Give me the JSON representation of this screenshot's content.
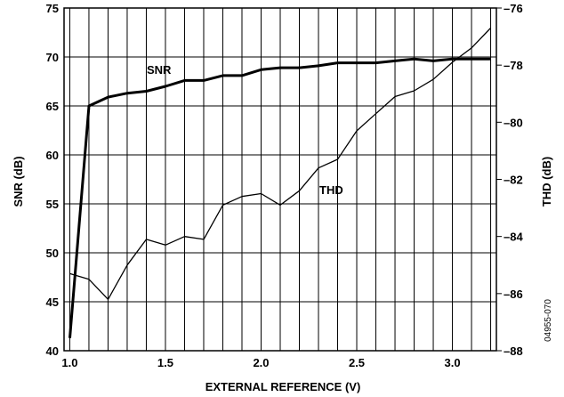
{
  "chart_data": {
    "type": "line",
    "xlabel": "EXTERNAL REFERENCE (V)",
    "ylabel_left": "SNR (dB)",
    "ylabel_right": "THD (dB)",
    "xlim": [
      0.97,
      3.23
    ],
    "ylim_left": [
      40,
      75
    ],
    "ylim_right": [
      -88,
      -76
    ],
    "x_ticks": [
      1.0,
      1.5,
      2.0,
      2.5,
      3.0
    ],
    "x_tick_labels": [
      "1.0",
      "1.5",
      "2.0",
      "2.5",
      "3.0"
    ],
    "y_left_ticks": [
      40,
      45,
      50,
      55,
      60,
      65,
      70,
      75
    ],
    "y_left_tick_labels": [
      "40",
      "45",
      "50",
      "55",
      "60",
      "65",
      "70",
      "75"
    ],
    "y_right_ticks": [
      -88,
      -86,
      -84,
      -82,
      -80,
      -78,
      -76
    ],
    "y_right_tick_labels": [
      "–88",
      "–86",
      "–84",
      "–82",
      "–80",
      "–78",
      "–76"
    ],
    "grid": true,
    "figure_id": "04955-070",
    "series": [
      {
        "name": "SNR",
        "axis": "left",
        "x": [
          1.0,
          1.1,
          1.2,
          1.3,
          1.4,
          1.5,
          1.6,
          1.7,
          1.8,
          1.9,
          2.0,
          2.1,
          2.2,
          2.3,
          2.4,
          2.5,
          2.6,
          2.7,
          2.8,
          2.9,
          3.0,
          3.1,
          3.2
        ],
        "y": [
          41.3,
          65.0,
          65.9,
          66.3,
          66.5,
          67.0,
          67.6,
          67.6,
          68.1,
          68.1,
          68.7,
          68.9,
          68.9,
          69.1,
          69.4,
          69.4,
          69.4,
          69.6,
          69.8,
          69.6,
          69.8,
          69.8,
          69.8
        ]
      },
      {
        "name": "THD",
        "axis": "right",
        "x": [
          1.0,
          1.1,
          1.2,
          1.3,
          1.4,
          1.5,
          1.6,
          1.7,
          1.8,
          1.9,
          2.0,
          2.1,
          2.2,
          2.3,
          2.4,
          2.5,
          2.6,
          2.7,
          2.8,
          2.9,
          3.0,
          3.1,
          3.2
        ],
        "y": [
          -85.3,
          -85.5,
          -86.2,
          -85.0,
          -84.1,
          -84.3,
          -84.0,
          -84.1,
          -82.9,
          -82.6,
          -82.5,
          -82.9,
          -82.4,
          -81.6,
          -81.3,
          -80.3,
          -79.7,
          -79.1,
          -78.9,
          -78.5,
          -77.9,
          -77.4,
          -76.7
        ]
      }
    ]
  }
}
